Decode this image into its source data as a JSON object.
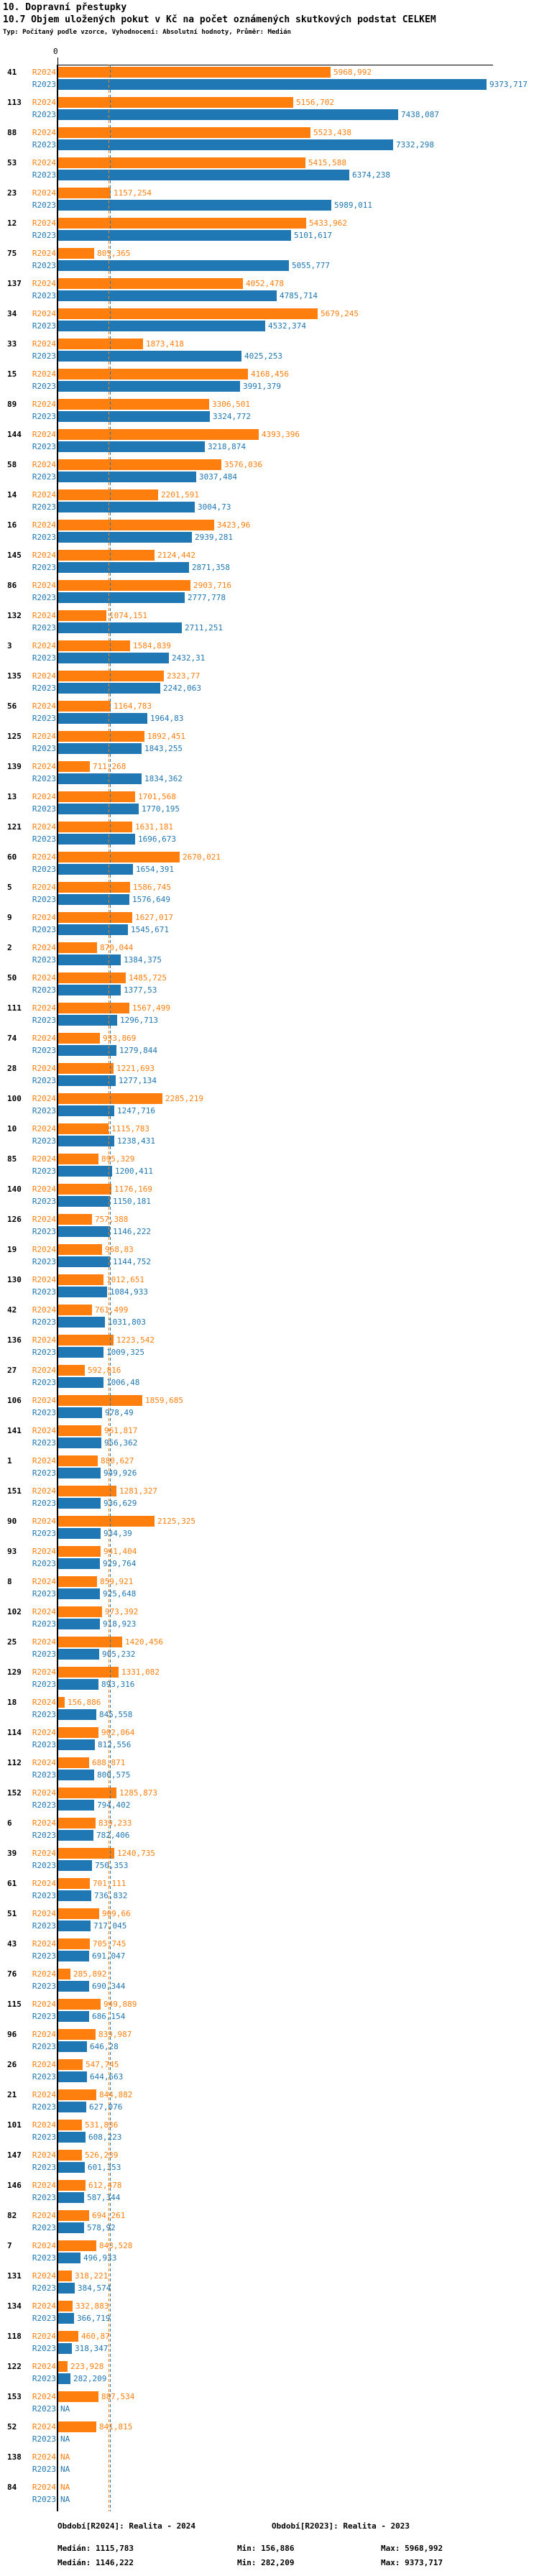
{
  "header": {
    "title": "10. Dopravní přestupky",
    "subtitle": "10.7 Objem uložených pokut v Kč na počet oznámených skutkových podstat CELKEM",
    "meta": "Typ: Počítaný podle vzorce, Vyhodnocení: Absolutní hodnoty, Průměr: Medián"
  },
  "axis": {
    "zero_label": "0"
  },
  "colors": {
    "r2024": "#ff7f0e",
    "r2023": "#1f77b4",
    "axis": "#000000"
  },
  "chart_data": {
    "type": "bar",
    "orientation": "horizontal-grouped",
    "decimal_separator": ",",
    "title": "10.7 Objem uložených pokut v Kč na počet oznámených skutkových podstat CELKEM",
    "xlabel": "",
    "ylabel": "",
    "x_axis": {
      "min": 0,
      "approx_max": 9500,
      "tick_labels": [
        "0"
      ]
    },
    "grid": false,
    "legend_position": "bottom",
    "series_names": [
      "R2024",
      "R2023"
    ],
    "median_lines": {
      "R2024": "1115,783",
      "R2023": "1146,222"
    },
    "rows": [
      {
        "id": "41",
        "R2024": "5968,992",
        "R2023": "9373,717"
      },
      {
        "id": "113",
        "R2024": "5156,702",
        "R2023": "7438,087"
      },
      {
        "id": "88",
        "R2024": "5523,438",
        "R2023": "7332,298"
      },
      {
        "id": "53",
        "R2024": "5415,588",
        "R2023": "6374,238"
      },
      {
        "id": "23",
        "R2024": "1157,254",
        "R2023": "5989,011"
      },
      {
        "id": "12",
        "R2024": "5433,962",
        "R2023": "5101,617"
      },
      {
        "id": "75",
        "R2024": "805,365",
        "R2023": "5055,777"
      },
      {
        "id": "137",
        "R2024": "4052,478",
        "R2023": "4785,714"
      },
      {
        "id": "34",
        "R2024": "5679,245",
        "R2023": "4532,374"
      },
      {
        "id": "33",
        "R2024": "1873,418",
        "R2023": "4025,253"
      },
      {
        "id": "15",
        "R2024": "4168,456",
        "R2023": "3991,379"
      },
      {
        "id": "89",
        "R2024": "3306,501",
        "R2023": "3324,772"
      },
      {
        "id": "144",
        "R2024": "4393,396",
        "R2023": "3218,874"
      },
      {
        "id": "58",
        "R2024": "3576,036",
        "R2023": "3037,484"
      },
      {
        "id": "14",
        "R2024": "2201,591",
        "R2023": "3004,73"
      },
      {
        "id": "16",
        "R2024": "3423,96",
        "R2023": "2939,281"
      },
      {
        "id": "145",
        "R2024": "2124,442",
        "R2023": "2871,358"
      },
      {
        "id": "86",
        "R2024": "2903,716",
        "R2023": "2777,778"
      },
      {
        "id": "132",
        "R2024": "1074,151",
        "R2023": "2711,251"
      },
      {
        "id": "3",
        "R2024": "1584,839",
        "R2023": "2432,31"
      },
      {
        "id": "135",
        "R2024": "2323,77",
        "R2023": "2242,063"
      },
      {
        "id": "56",
        "R2024": "1164,783",
        "R2023": "1964,83"
      },
      {
        "id": "125",
        "R2024": "1892,451",
        "R2023": "1843,255"
      },
      {
        "id": "139",
        "R2024": "711,268",
        "R2023": "1834,362"
      },
      {
        "id": "13",
        "R2024": "1701,568",
        "R2023": "1770,195"
      },
      {
        "id": "121",
        "R2024": "1631,181",
        "R2023": "1696,673"
      },
      {
        "id": "60",
        "R2024": "2670,021",
        "R2023": "1654,391"
      },
      {
        "id": "5",
        "R2024": "1586,745",
        "R2023": "1576,649"
      },
      {
        "id": "9",
        "R2024": "1627,017",
        "R2023": "1545,671"
      },
      {
        "id": "2",
        "R2024": "870,044",
        "R2023": "1384,375"
      },
      {
        "id": "50",
        "R2024": "1485,725",
        "R2023": "1377,53"
      },
      {
        "id": "111",
        "R2024": "1567,499",
        "R2023": "1296,713"
      },
      {
        "id": "74",
        "R2024": "933,869",
        "R2023": "1279,844"
      },
      {
        "id": "28",
        "R2024": "1221,693",
        "R2023": "1277,134"
      },
      {
        "id": "100",
        "R2024": "2285,219",
        "R2023": "1247,716"
      },
      {
        "id": "10",
        "R2024": "1115,783",
        "R2023": "1238,431"
      },
      {
        "id": "85",
        "R2024": "895,329",
        "R2023": "1200,411"
      },
      {
        "id": "140",
        "R2024": "1176,169",
        "R2023": "1150,181"
      },
      {
        "id": "126",
        "R2024": "757,388",
        "R2023": "1146,222"
      },
      {
        "id": "19",
        "R2024": "968,83",
        "R2023": "1144,752"
      },
      {
        "id": "130",
        "R2024": "1012,651",
        "R2023": "1084,933"
      },
      {
        "id": "42",
        "R2024": "761,499",
        "R2023": "1031,803"
      },
      {
        "id": "136",
        "R2024": "1223,542",
        "R2023": "1009,325"
      },
      {
        "id": "27",
        "R2024": "592,816",
        "R2023": "1006,48"
      },
      {
        "id": "106",
        "R2024": "1859,685",
        "R2023": "978,49"
      },
      {
        "id": "141",
        "R2024": "961,817",
        "R2023": "956,362"
      },
      {
        "id": "1",
        "R2024": "880,627",
        "R2023": "949,926"
      },
      {
        "id": "151",
        "R2024": "1281,327",
        "R2023": "936,629"
      },
      {
        "id": "90",
        "R2024": "2125,325",
        "R2023": "934,39"
      },
      {
        "id": "93",
        "R2024": "941,404",
        "R2023": "929,764"
      },
      {
        "id": "8",
        "R2024": "859,921",
        "R2023": "925,648"
      },
      {
        "id": "102",
        "R2024": "973,392",
        "R2023": "918,923"
      },
      {
        "id": "25",
        "R2024": "1420,456",
        "R2023": "905,232"
      },
      {
        "id": "129",
        "R2024": "1331,082",
        "R2023": "893,316"
      },
      {
        "id": "18",
        "R2024": "156,886",
        "R2023": "845,558"
      },
      {
        "id": "114",
        "R2024": "902,064",
        "R2023": "812,556"
      },
      {
        "id": "112",
        "R2024": "688,871",
        "R2023": "800,575"
      },
      {
        "id": "152",
        "R2024": "1285,873",
        "R2023": "794,402"
      },
      {
        "id": "6",
        "R2024": "839,233",
        "R2023": "782,406"
      },
      {
        "id": "39",
        "R2024": "1240,735",
        "R2023": "750,353"
      },
      {
        "id": "61",
        "R2024": "701,111",
        "R2023": "736,832"
      },
      {
        "id": "51",
        "R2024": "909,66",
        "R2023": "717,045"
      },
      {
        "id": "43",
        "R2024": "705,745",
        "R2023": "691,047"
      },
      {
        "id": "76",
        "R2024": "285,892",
        "R2023": "690,344"
      },
      {
        "id": "115",
        "R2024": "949,889",
        "R2023": "686,154"
      },
      {
        "id": "96",
        "R2024": "839,987",
        "R2023": "646,28"
      },
      {
        "id": "26",
        "R2024": "547,745",
        "R2023": "644,663"
      },
      {
        "id": "21",
        "R2024": "844,882",
        "R2023": "627,076"
      },
      {
        "id": "101",
        "R2024": "531,836",
        "R2023": "608,223"
      },
      {
        "id": "147",
        "R2024": "526,239",
        "R2023": "601,353"
      },
      {
        "id": "146",
        "R2024": "612,478",
        "R2023": "587,344"
      },
      {
        "id": "82",
        "R2024": "694,261",
        "R2023": "578,92"
      },
      {
        "id": "7",
        "R2024": "843,528",
        "R2023": "496,933"
      },
      {
        "id": "131",
        "R2024": "318,221",
        "R2023": "384,574"
      },
      {
        "id": "134",
        "R2024": "332,883",
        "R2023": "366,719"
      },
      {
        "id": "118",
        "R2024": "460,87",
        "R2023": "318,347"
      },
      {
        "id": "122",
        "R2024": "223,928",
        "R2023": "282,209"
      },
      {
        "id": "153",
        "R2024": "887,534",
        "R2023": "NA"
      },
      {
        "id": "52",
        "R2024": "841,815",
        "R2023": "NA"
      },
      {
        "id": "138",
        "R2024": "NA",
        "R2023": "NA"
      },
      {
        "id": "84",
        "R2024": "NA",
        "R2023": "NA"
      }
    ]
  },
  "footer": {
    "legend_r2024": "Období[R2024]: Realita - 2024",
    "legend_r2023": "Období[R2023]: Realita - 2023",
    "stats_r2024": {
      "median": "Medián: 1115,783",
      "min": "Min: 156,886",
      "max": "Max: 5968,992"
    },
    "stats_r2023": {
      "median": "Medián: 1146,222",
      "min": "Min: 282,209",
      "max": "Max: 9373,717"
    }
  }
}
